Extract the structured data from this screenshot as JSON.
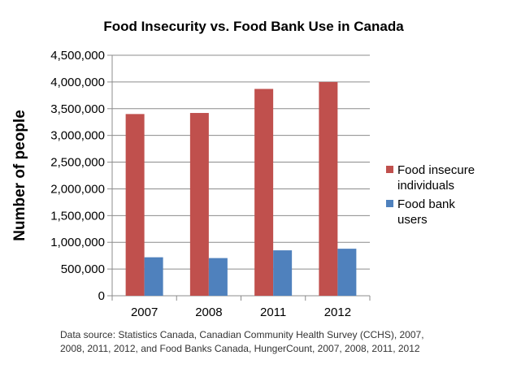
{
  "chart_data": {
    "type": "bar",
    "title": "Food Insecurity vs. Food Bank Use in Canada",
    "xlabel": "",
    "ylabel": "Number of people",
    "categories": [
      "2007",
      "2008",
      "2011",
      "2012"
    ],
    "series": [
      {
        "name": "Food insecure individuals",
        "values": [
          3400000,
          3420000,
          3870000,
          4000000
        ],
        "color": "#c0504d"
      },
      {
        "name": "Food bank users",
        "values": [
          720000,
          705000,
          850000,
          880000
        ],
        "color": "#4f81bd"
      }
    ],
    "ylim": [
      0,
      4500000
    ],
    "yticks": [
      0,
      500000,
      1000000,
      1500000,
      2000000,
      2500000,
      3000000,
      3500000,
      4000000,
      4500000
    ],
    "ytick_labels": [
      "0",
      "500,000",
      "1,000,000",
      "1,500,000",
      "2,000,000",
      "2,500,000",
      "3,000,000",
      "3,500,000",
      "4,000,000",
      "4,500,000"
    ],
    "grid": true,
    "legend_position": "right"
  },
  "source_note": "Data source:  Statistics Canada, Canadian Community Health Survey (CCHS), 2007,\n2008, 2011, 2012, and Food Banks Canada, HungerCount, 2007, 2008, 2011, 2012"
}
